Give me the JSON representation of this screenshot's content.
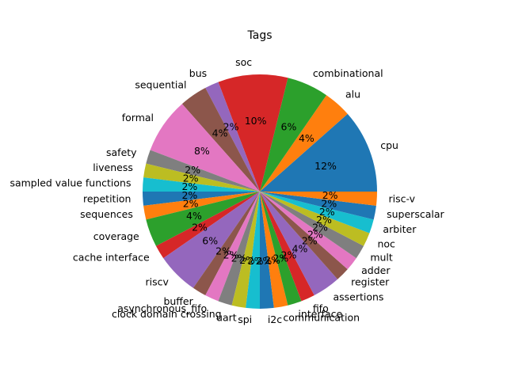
{
  "chart_data": {
    "type": "pie",
    "title": "Tags",
    "start_angle_deg": 0,
    "direction": "counterclockwise",
    "autopct_format": "{:.0f}%",
    "categories": [
      "cpu",
      "alu",
      "combinational",
      "soc",
      "bus",
      "sequential",
      "formal",
      "safety",
      "liveness",
      "sampled value functions",
      "repetition",
      "sequences",
      "coverage",
      "cache interface",
      "riscv",
      "buffer",
      "asynchronous_fifo",
      "clock domain crossing",
      "uart",
      "spi",
      "i2c",
      "communication",
      "interface",
      "fifo",
      "assertions",
      "register",
      "adder",
      "mult",
      "noc",
      "arbiter",
      "superscalar",
      "risc-v"
    ],
    "values": [
      6,
      2,
      3,
      5,
      1,
      2,
      4,
      1,
      1,
      1,
      1,
      1,
      2,
      1,
      3,
      1,
      1,
      1,
      1,
      1,
      1,
      1,
      1,
      1,
      2,
      1,
      1,
      1,
      1,
      1,
      1,
      1
    ],
    "colors": [
      "#1f77b4",
      "#ff7f0e",
      "#2ca02c",
      "#d62728",
      "#9467bd",
      "#8c564b",
      "#e377c2",
      "#7f7f7f",
      "#bcbd22",
      "#17becf"
    ]
  }
}
